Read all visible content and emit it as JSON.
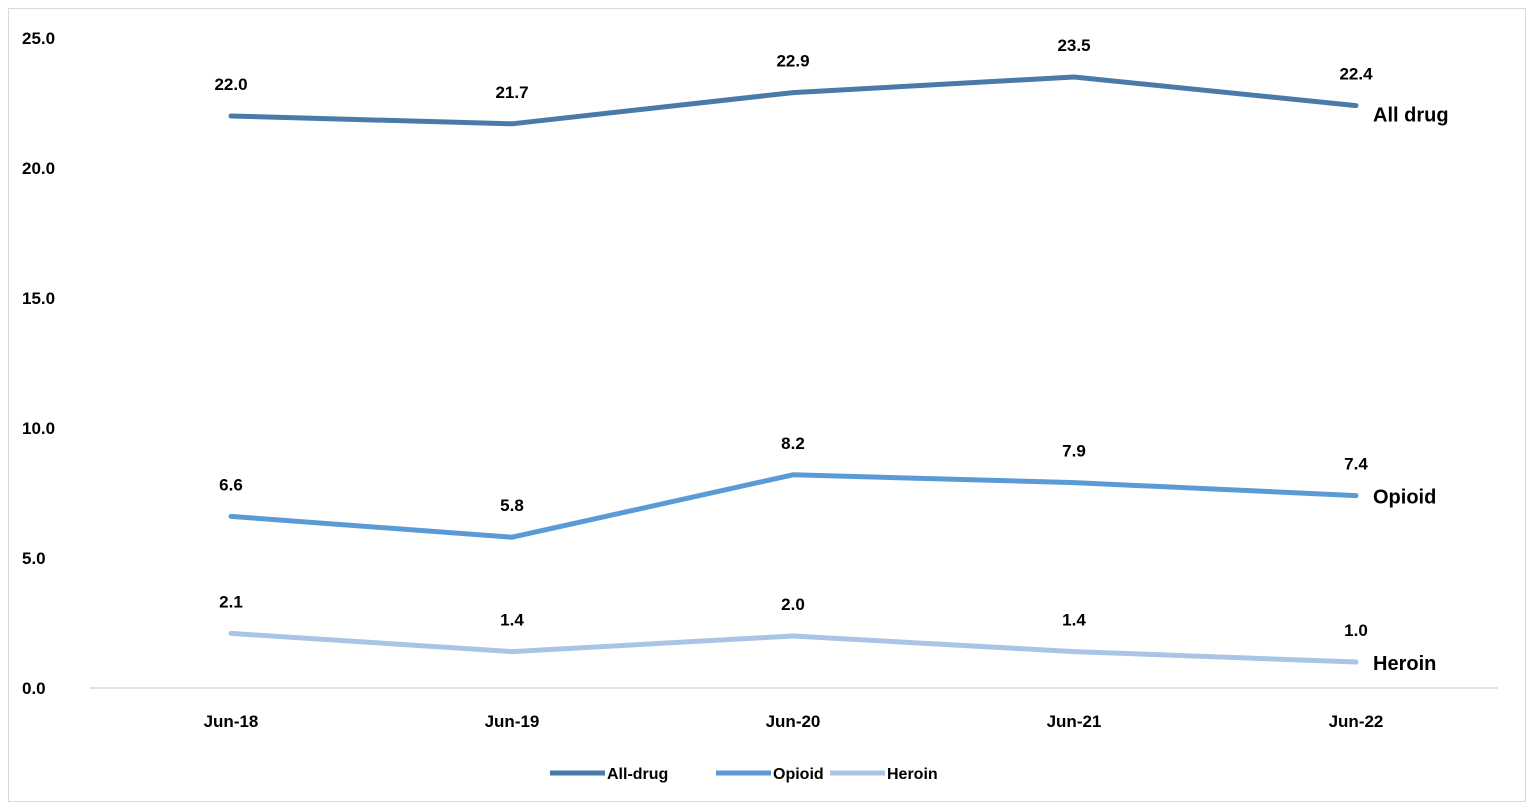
{
  "chart_data": {
    "type": "line",
    "categories": [
      "Jun-18",
      "Jun-19",
      "Jun-20",
      "Jun-21",
      "Jun-22"
    ],
    "ylim": [
      0,
      25
    ],
    "yticks": [
      "0.0",
      "5.0",
      "10.0",
      "15.0",
      "20.0",
      "25.0"
    ],
    "grid": false,
    "legend_placement": "bottom",
    "series": [
      {
        "name": "All-drug",
        "end_label": "All drug",
        "color": "#4a7aa8",
        "values": [
          22.0,
          21.7,
          22.9,
          23.5,
          22.4
        ],
        "labels": [
          "22.0",
          "21.7",
          "22.9",
          "23.5",
          "22.4"
        ]
      },
      {
        "name": "Opioid",
        "end_label": "Opioid",
        "color": "#5b9bd5",
        "end_label_color": "#2f5f9e",
        "values": [
          6.6,
          5.8,
          8.2,
          7.9,
          7.4
        ],
        "labels": [
          "6.6",
          "5.8",
          "8.2",
          "7.9",
          "7.4"
        ]
      },
      {
        "name": "Heroin",
        "end_label": "Heroin",
        "color": "#a9c5e6",
        "values": [
          2.1,
          1.4,
          2.0,
          1.4,
          1.0
        ],
        "labels": [
          "2.1",
          "1.4",
          "2.0",
          "1.4",
          "1.0"
        ]
      }
    ]
  }
}
